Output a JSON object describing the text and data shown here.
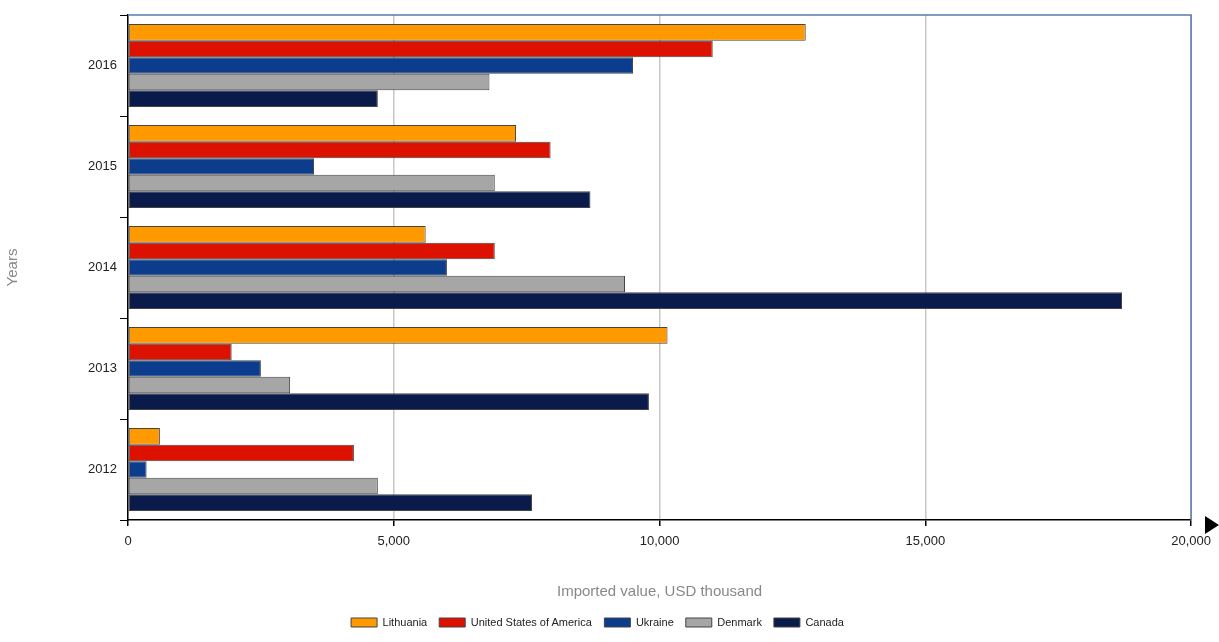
{
  "chart_data": {
    "type": "bar",
    "orientation": "horizontal",
    "xlabel": "Imported value, USD thousand",
    "ylabel": "Years",
    "categories": [
      "2016",
      "2015",
      "2014",
      "2013",
      "2012"
    ],
    "series": [
      {
        "name": "Lithuania",
        "color": "#ff9900",
        "values": [
          12750,
          7300,
          5600,
          10150,
          600
        ]
      },
      {
        "name": "United States of America",
        "color": "#dd1100",
        "values": [
          11000,
          7950,
          6900,
          1950,
          4250
        ]
      },
      {
        "name": "Ukraine",
        "color": "#0b3d8c",
        "values": [
          9500,
          3500,
          6000,
          2500,
          350
        ]
      },
      {
        "name": "Denmark",
        "color": "#a6a6a6",
        "values": [
          6800,
          6900,
          9350,
          3050,
          4700
        ]
      },
      {
        "name": "Canada",
        "color": "#0a1a4a",
        "values": [
          4700,
          8700,
          18700,
          9800,
          7600
        ]
      }
    ],
    "xlim": [
      0,
      20000
    ],
    "xticks": [
      0,
      {
        "value": 5000,
        "label": "5,000"
      },
      {
        "value": 10000,
        "label": "10,000"
      },
      {
        "value": 15000,
        "label": "15,000"
      },
      {
        "value": 20000,
        "label": "20,000"
      }
    ],
    "grid": "x",
    "legend": "bottom"
  }
}
